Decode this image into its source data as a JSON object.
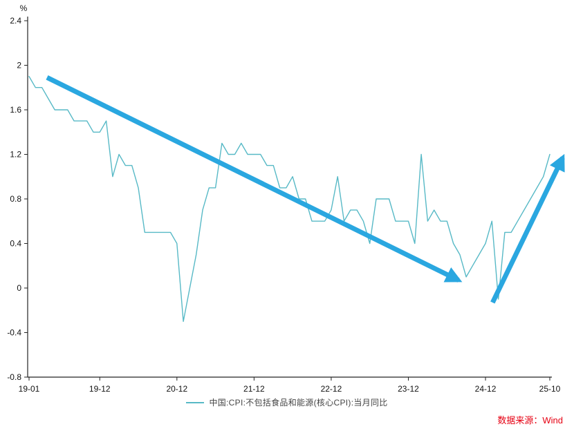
{
  "chart_data": {
    "type": "line",
    "title": "",
    "unit_label": "%",
    "x_start": "19-01",
    "x_end": "25-10",
    "x_unit": "month",
    "ylim": [
      -0.8,
      2.4
    ],
    "grid": false,
    "legend_position": "bottom-center",
    "series": [
      {
        "name": "中国:CPI:不包括食品和能源(核心CPI):当月同比",
        "color": "#57b9c6",
        "values": [
          1.9,
          1.8,
          1.8,
          1.7,
          1.6,
          1.6,
          1.6,
          1.5,
          1.5,
          1.5,
          1.4,
          1.4,
          1.5,
          1.0,
          1.2,
          1.1,
          1.1,
          0.9,
          0.5,
          0.5,
          0.5,
          0.5,
          0.5,
          0.4,
          -0.3,
          0.0,
          0.3,
          0.7,
          0.9,
          0.9,
          1.3,
          1.2,
          1.2,
          1.3,
          1.2,
          1.2,
          1.2,
          1.1,
          1.1,
          0.9,
          0.9,
          1.0,
          0.8,
          0.8,
          0.6,
          0.6,
          0.6,
          0.7,
          1.0,
          0.6,
          0.7,
          0.7,
          0.6,
          0.4,
          0.8,
          0.8,
          0.8,
          0.6,
          0.6,
          0.6,
          0.4,
          1.2,
          0.6,
          0.7,
          0.6,
          0.6,
          0.4,
          0.3,
          0.1,
          0.2,
          0.3,
          0.4,
          0.6,
          -0.1,
          0.5,
          0.5,
          0.6,
          0.7,
          0.8,
          0.9,
          1.0,
          1.2
        ]
      }
    ],
    "yticks": [
      {
        "v": 2.4,
        "label": "2.4"
      },
      {
        "v": 2.0,
        "label": "2"
      },
      {
        "v": 1.6,
        "label": "1.6"
      },
      {
        "v": 1.2,
        "label": "1.2"
      },
      {
        "v": 0.8,
        "label": "0.8"
      },
      {
        "v": 0.4,
        "label": "0.4"
      },
      {
        "v": 0.0,
        "label": "0"
      },
      {
        "v": -0.4,
        "label": "-0.4"
      },
      {
        "v": -0.8,
        "label": "-0.8"
      }
    ],
    "xticks": [
      {
        "i": 0,
        "label": "19-01"
      },
      {
        "i": 11,
        "label": "19-12"
      },
      {
        "i": 23,
        "label": "20-12"
      },
      {
        "i": 35,
        "label": "21-12"
      },
      {
        "i": 47,
        "label": "22-12"
      },
      {
        "i": 59,
        "label": "23-12"
      },
      {
        "i": 71,
        "label": "24-12"
      },
      {
        "i": 81,
        "label": "25-10"
      }
    ],
    "annotations": {
      "color": "#2aa7e0",
      "arrows": [
        {
          "from_month": 2.8,
          "from_value": 1.89,
          "to_month": 66.8,
          "to_value": 0.07
        },
        {
          "from_month": 72.1,
          "from_value": -0.13,
          "to_month": 83.0,
          "to_value": 1.17
        }
      ]
    }
  },
  "legend": {
    "label": "中国:CPI:不包括食品和能源(核心CPI):当月同比"
  },
  "source": {
    "label": "数据来源：Wind",
    "color": "#e60012"
  }
}
